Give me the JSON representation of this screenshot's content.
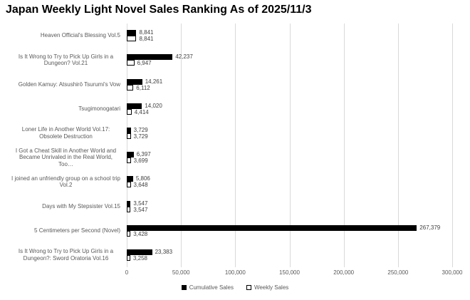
{
  "chart_data": {
    "type": "bar",
    "orientation": "horizontal",
    "title": "Japan Weekly Light Novel Sales Ranking As of 2025/11/3",
    "categories": [
      "Heaven Official's Blessing Vol.5",
      "Is It Wrong to Try to Pick Up Girls in a Dungeon? Vol.21",
      "Golden Kamuy: Atsushirō Tsurumi's Vow",
      "Tsugimonogatari",
      "Loner Life in Another World Vol.17: Obsolete Destruction",
      "I Got a Cheat Skill in Another World and Became Unrivaled in the Real World, Too…",
      "I joined an unfriendly group on a school trip Vol.2",
      "Days with My Stepsister Vol.15",
      "5 Centimeters per Second (Novel)",
      "Is It Wrong to Try to Pick Up Girls in a Dungeon?: Sword Oratoria Vol.16"
    ],
    "series": [
      {
        "name": "Cumulative Sales",
        "values": [
          8841,
          42237,
          14261,
          14020,
          3729,
          6397,
          5806,
          3547,
          267379,
          23383
        ]
      },
      {
        "name": "Weekly Sales",
        "values": [
          8841,
          6947,
          6112,
          4414,
          3729,
          3699,
          3648,
          3547,
          3428,
          3258
        ]
      }
    ],
    "xlabel": "",
    "ylabel": "",
    "xlim": [
      0,
      300000
    ],
    "xticks": [
      0,
      50000,
      100000,
      150000,
      200000,
      250000,
      300000
    ],
    "grid": "vertical",
    "legend_position": "bottom",
    "colors": {
      "cumulative_fill": "#000000",
      "weekly_fill": "#ffffff",
      "weekly_border": "#000000",
      "gridline": "#d9d9d9",
      "value_label_text": "#404040",
      "axis_text": "#595959",
      "title_text": "#000000",
      "background": "#ffffff"
    }
  }
}
